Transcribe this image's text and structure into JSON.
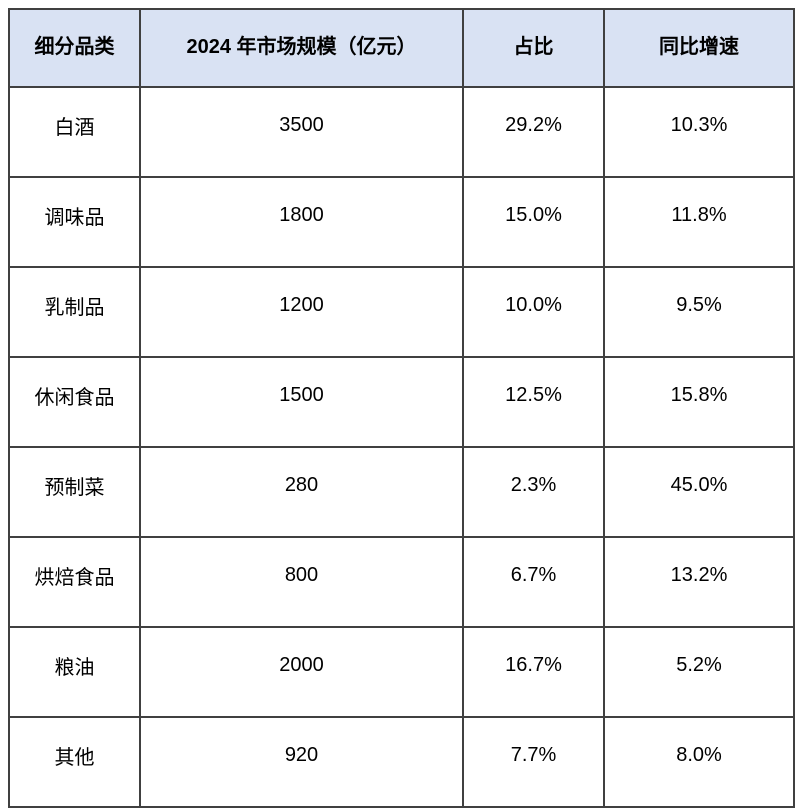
{
  "page": {
    "background_color": "#ffffff"
  },
  "table": {
    "style": {
      "header_bg_color": "#d9e2f3",
      "body_bg_color": "#ffffff",
      "border_color": "#404040",
      "text_color": "#000000"
    },
    "header": {
      "columns": [
        "细分品类",
        "2024 年市场规模（亿元）",
        "占比",
        "同比增速"
      ]
    },
    "rows": [
      {
        "category": "白酒",
        "market_size": "3500",
        "share": "29.2%",
        "yoy": "10.3%"
      },
      {
        "category": "调味品",
        "market_size": "1800",
        "share": "15.0%",
        "yoy": "11.8%"
      },
      {
        "category": "乳制品",
        "market_size": "1200",
        "share": "10.0%",
        "yoy": "9.5%"
      },
      {
        "category": "休闲食品",
        "market_size": "1500",
        "share": "12.5%",
        "yoy": "15.8%"
      },
      {
        "category": "预制菜",
        "market_size": "280",
        "share": "2.3%",
        "yoy": "45.0%"
      },
      {
        "category": "烘焙食品",
        "market_size": "800",
        "share": "6.7%",
        "yoy": "13.2%"
      },
      {
        "category": "粮油",
        "market_size": "2000",
        "share": "16.7%",
        "yoy": "5.2%"
      },
      {
        "category": "其他",
        "market_size": "920",
        "share": "7.7%",
        "yoy": "8.0%"
      }
    ]
  },
  "chart_data": {
    "type": "table",
    "columns": [
      "细分品类",
      "2024 年市场规模（亿元）",
      "占比",
      "同比增速"
    ],
    "rows": [
      [
        "白酒",
        3500,
        "29.2%",
        "10.3%"
      ],
      [
        "调味品",
        1800,
        "15.0%",
        "11.8%"
      ],
      [
        "乳制品",
        1200,
        "10.0%",
        "9.5%"
      ],
      [
        "休闲食品",
        1500,
        "12.5%",
        "15.8%"
      ],
      [
        "预制菜",
        280,
        "2.3%",
        "45.0%"
      ],
      [
        "烘焙食品",
        800,
        "6.7%",
        "13.2%"
      ],
      [
        "粮油",
        2000,
        "16.7%",
        "5.2%"
      ],
      [
        "其他",
        920,
        "7.7%",
        "8.0%"
      ]
    ]
  }
}
